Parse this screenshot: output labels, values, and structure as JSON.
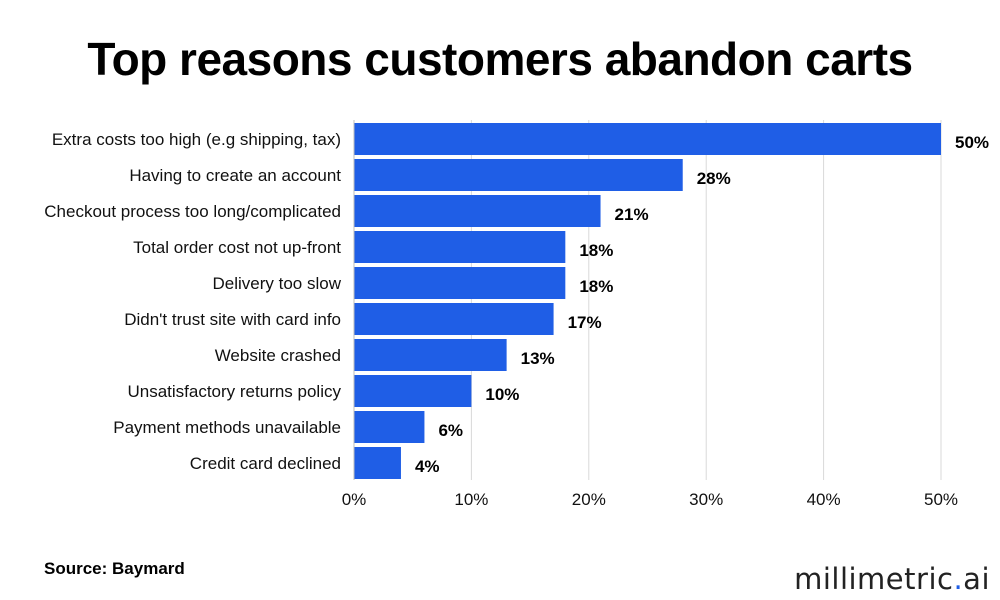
{
  "title": "Top reasons customers abandon carts",
  "source": "Source: Baymard",
  "brand": {
    "name": "millimetric",
    "dot": ".",
    "suffix": "ai"
  },
  "colors": {
    "bar": "#1f5ee6",
    "grid": "#d9d9d9",
    "text": "#111111"
  },
  "chart_data": {
    "type": "bar",
    "orientation": "horizontal",
    "title": "Top reasons customers abandon carts",
    "categories": [
      "Extra costs too high (e.g shipping, tax)",
      "Having to create an account",
      "Checkout process too long/complicated",
      "Total order cost not up-front",
      "Delivery too slow",
      "Didn't trust site with card info",
      "Website crashed",
      "Unsatisfactory returns policy",
      "Payment methods unavailable",
      "Credit card declined"
    ],
    "values": [
      50,
      28,
      21,
      18,
      18,
      17,
      13,
      10,
      6,
      4
    ],
    "value_labels": [
      "50%",
      "28%",
      "21%",
      "18%",
      "18%",
      "17%",
      "13%",
      "10%",
      "6%",
      "4%"
    ],
    "xlim": [
      0,
      50
    ],
    "x_ticks": [
      0,
      10,
      20,
      30,
      40,
      50
    ],
    "x_tick_labels": [
      "0%",
      "10%",
      "20%",
      "30%",
      "40%",
      "50%"
    ],
    "xlabel": "",
    "ylabel": "",
    "grid": "vertical"
  }
}
